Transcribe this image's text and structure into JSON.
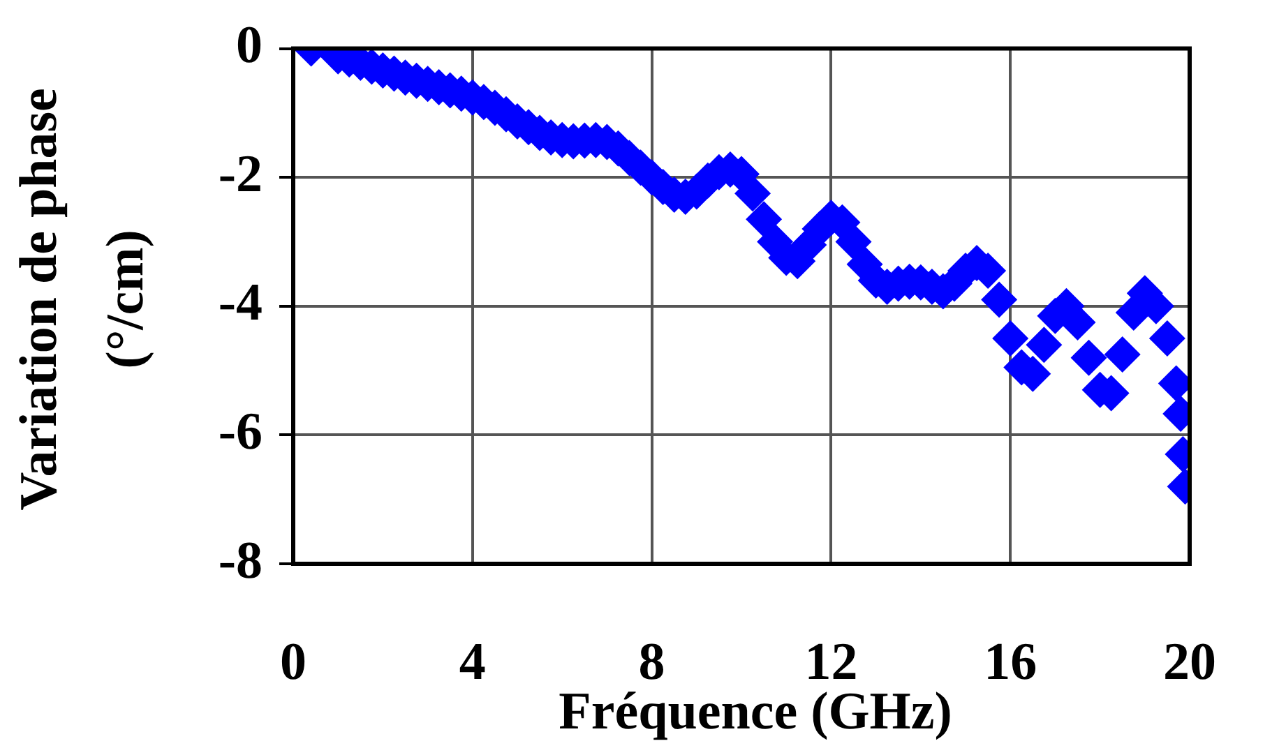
{
  "chart_data": {
    "type": "scatter",
    "xlabel": "Fréquence (GHz)",
    "ylabel": "Variation de phase\n(°/cm)",
    "x": [
      0.4,
      1.0,
      1.25,
      1.5,
      1.75,
      2.0,
      2.25,
      2.5,
      2.75,
      3.0,
      3.25,
      3.5,
      3.75,
      4.0,
      4.25,
      4.5,
      4.75,
      5.0,
      5.25,
      5.5,
      5.75,
      6.0,
      6.25,
      6.5,
      6.75,
      7.0,
      7.25,
      7.5,
      7.75,
      8.0,
      8.25,
      8.5,
      8.75,
      9.0,
      9.25,
      9.5,
      9.75,
      10.0,
      10.25,
      10.5,
      10.75,
      11.0,
      11.25,
      11.5,
      11.75,
      12.0,
      12.25,
      12.5,
      12.75,
      13.0,
      13.25,
      13.5,
      13.75,
      14.0,
      14.25,
      14.5,
      14.75,
      15.0,
      15.25,
      15.5,
      15.75,
      16.0,
      16.25,
      16.5,
      16.75,
      17.0,
      17.25,
      17.5,
      17.75,
      18.0,
      18.25,
      18.5,
      18.75,
      19.0,
      19.25,
      19.5,
      19.7,
      19.8,
      19.85,
      19.9
    ],
    "series": [
      {
        "color": "#0000ff",
        "values": [
          0,
          -0.12,
          -0.17,
          -0.22,
          -0.28,
          -0.34,
          -0.39,
          -0.45,
          -0.5,
          -0.55,
          -0.6,
          -0.65,
          -0.7,
          -0.76,
          -0.83,
          -0.92,
          -1.02,
          -1.13,
          -1.22,
          -1.31,
          -1.38,
          -1.42,
          -1.44,
          -1.43,
          -1.42,
          -1.45,
          -1.55,
          -1.7,
          -1.85,
          -2.0,
          -2.15,
          -2.27,
          -2.3,
          -2.22,
          -2.05,
          -1.92,
          -1.88,
          -1.95,
          -2.25,
          -2.65,
          -3.0,
          -3.25,
          -3.3,
          -3.05,
          -2.8,
          -2.63,
          -2.7,
          -3.0,
          -3.35,
          -3.6,
          -3.7,
          -3.65,
          -3.62,
          -3.63,
          -3.7,
          -3.77,
          -3.65,
          -3.45,
          -3.33,
          -3.45,
          -3.9,
          -4.5,
          -4.95,
          -5.05,
          -4.6,
          -4.15,
          -4.0,
          -4.25,
          -4.8,
          -5.3,
          -5.35,
          -4.75,
          -4.1,
          -3.8,
          -4.0,
          -4.5,
          -5.2,
          -5.67,
          -6.3,
          -6.8
        ]
      }
    ],
    "xlim": [
      0,
      20
    ],
    "xticks": [
      0,
      4,
      8,
      12,
      16,
      20
    ],
    "ylim": [
      -8,
      0
    ],
    "yticks": [
      0,
      -2,
      -4,
      -6,
      -8
    ],
    "grid": true,
    "marker": "diamond"
  }
}
